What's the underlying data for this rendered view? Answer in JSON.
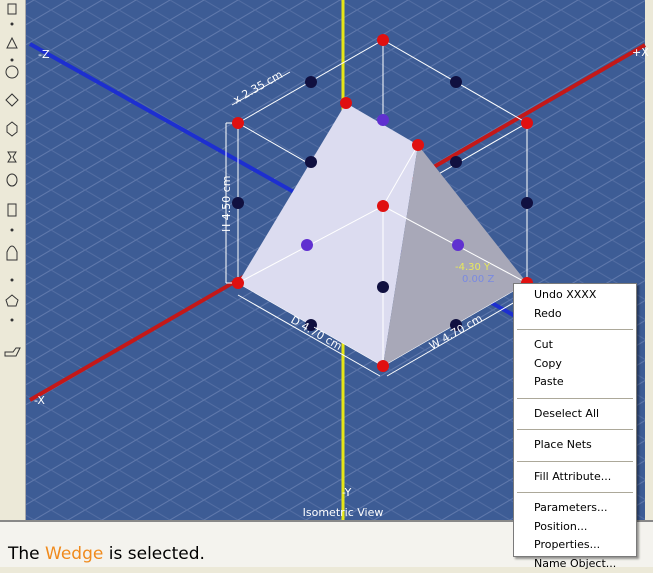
{
  "viewport": {
    "axis_labels": {
      "neg_z": "-Z",
      "pos_x": "+X",
      "neg_x": "-X",
      "neg_y": "-Y"
    },
    "view_name": "Isometric View",
    "dimensions": {
      "x": "x 2.35 cm",
      "height": "H 4.50 cm",
      "depth": "D 4.70 cm",
      "width": "W 4.70 cm"
    },
    "readout": {
      "y": "-4.30 Y",
      "z": "0.00 Z"
    }
  },
  "context_menu": {
    "groups": [
      [
        "Undo XXXX",
        "Redo"
      ],
      [
        "Cut",
        "Copy",
        "Paste"
      ],
      [
        "Deselect All"
      ],
      [
        "Place Nets"
      ],
      [
        "Fill Attribute..."
      ],
      [
        "Parameters...",
        "Position...",
        "Properties...",
        "Name Object..."
      ]
    ]
  },
  "status_bar": {
    "prefix": "The",
    "object": "Wedge",
    "suffix": "is selected."
  }
}
